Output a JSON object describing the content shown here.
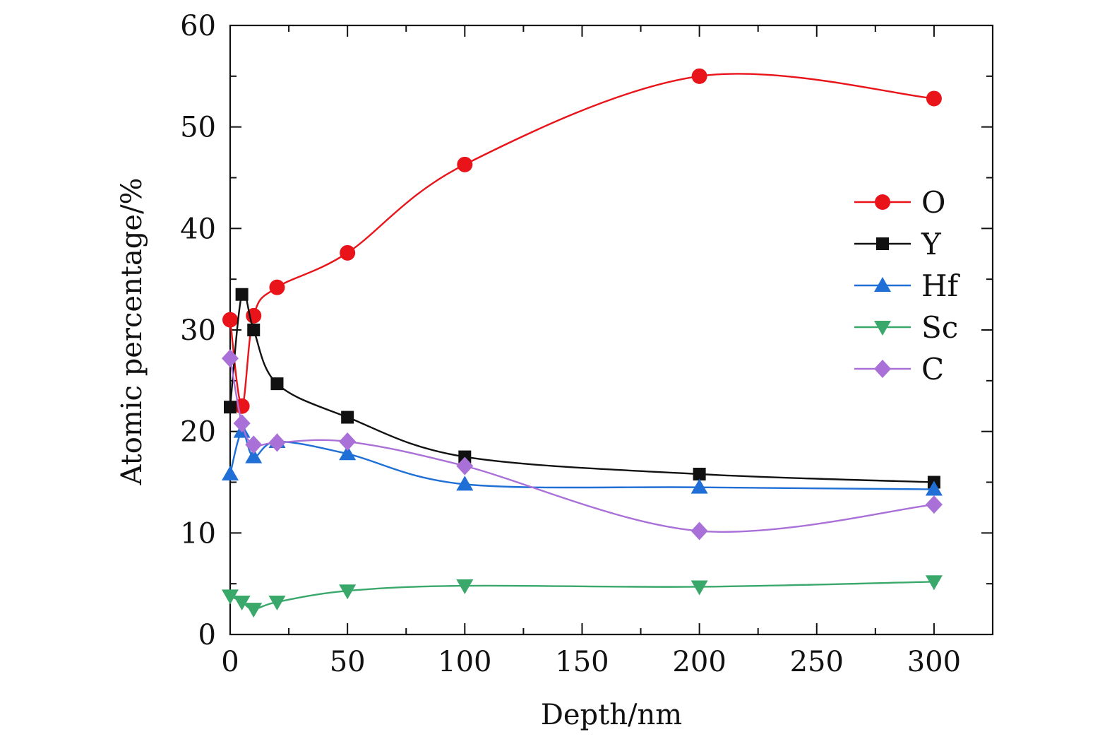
{
  "chart_data": {
    "type": "line",
    "title": "",
    "xlabel": "Depth/nm",
    "ylabel": "Atomic percentage/%",
    "xlim": [
      0,
      325
    ],
    "ylim": [
      0,
      60
    ],
    "xticks": [
      0,
      50,
      100,
      150,
      200,
      250,
      300
    ],
    "yticks": [
      0,
      10,
      20,
      30,
      40,
      50,
      60
    ],
    "x_tick_labels": [
      "0",
      "50",
      "100",
      "150",
      "200",
      "250",
      "300"
    ],
    "y_tick_labels": [
      "0",
      "10",
      "20",
      "30",
      "40",
      "50",
      "60"
    ],
    "grid": false,
    "legend_position": "right",
    "x": [
      0,
      5,
      10,
      20,
      50,
      100,
      200,
      300
    ],
    "series": [
      {
        "name": "O",
        "color": "#e8141a",
        "marker": "circle",
        "values": [
          31.0,
          22.5,
          31.4,
          34.2,
          37.6,
          46.3,
          55.0,
          52.8
        ]
      },
      {
        "name": "Y",
        "color": "#111111",
        "marker": "square",
        "values": [
          22.4,
          33.5,
          30.0,
          24.7,
          21.4,
          17.5,
          15.8,
          15.0
        ]
      },
      {
        "name": "Hf",
        "color": "#1f6fd6",
        "marker": "triangle",
        "values": [
          15.8,
          20.0,
          17.5,
          19.0,
          17.8,
          14.8,
          14.5,
          14.3
        ]
      },
      {
        "name": "Sc",
        "color": "#3aa86b",
        "marker": "triangle-down",
        "values": [
          3.8,
          3.2,
          2.5,
          3.2,
          4.3,
          4.8,
          4.7,
          5.2
        ]
      },
      {
        "name": "C",
        "color": "#a970d8",
        "marker": "diamond",
        "values": [
          27.2,
          20.8,
          18.7,
          18.9,
          19.0,
          16.6,
          10.2,
          12.8
        ]
      }
    ]
  }
}
